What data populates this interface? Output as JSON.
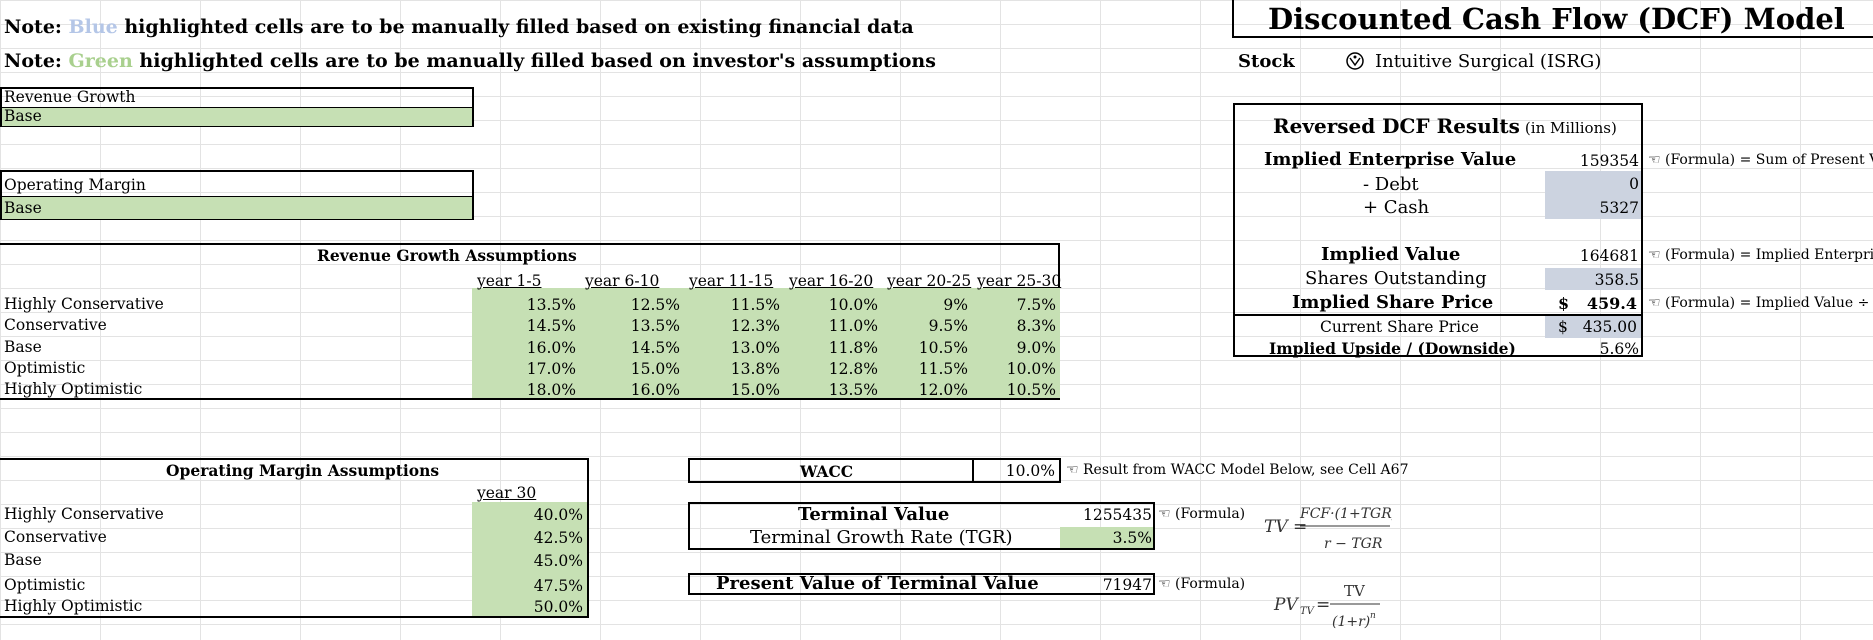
{
  "notes": {
    "note1_prefix": "Note:",
    "note1_color": "Blue",
    "note1_rest": "highlighted cells are to be manually filled based on existing financial data",
    "note2_prefix": "Note:",
    "note2_color": "Green",
    "note2_rest": "highlighted cells are to be manually filled based on investor's assumptions"
  },
  "title": "Discounted Cash Flow (DCF) Model",
  "stock": {
    "label": "Stock",
    "value": "Intuitive Surgical (ISRG)",
    "icon": "company-logo-icon"
  },
  "selectors": {
    "revenue_growth_label": "Revenue Growth",
    "revenue_growth_value": "Base",
    "operating_margin_label": "Operating Margin",
    "operating_margin_value": "Base"
  },
  "revenue_growth": {
    "title": "Revenue Growth Assumptions",
    "headers": [
      "year 1-5",
      "year 6-10",
      "year 11-15",
      "year 16-20",
      "year 20-25",
      "year 25-30"
    ],
    "rows": [
      {
        "label": "Highly Conservative",
        "values": [
          "13.5%",
          "12.5%",
          "11.5%",
          "10.0%",
          "9%",
          "7.5%"
        ]
      },
      {
        "label": "Conservative",
        "values": [
          "14.5%",
          "13.5%",
          "12.3%",
          "11.0%",
          "9.5%",
          "8.3%"
        ]
      },
      {
        "label": "Base",
        "values": [
          "16.0%",
          "14.5%",
          "13.0%",
          "11.8%",
          "10.5%",
          "9.0%"
        ]
      },
      {
        "label": "Optimistic",
        "values": [
          "17.0%",
          "15.0%",
          "13.8%",
          "12.8%",
          "11.5%",
          "10.0%"
        ]
      },
      {
        "label": "Highly Optimistic",
        "values": [
          "18.0%",
          "16.0%",
          "15.0%",
          "13.5%",
          "12.0%",
          "10.5%"
        ]
      }
    ]
  },
  "operating_margin": {
    "title": "Operating Margin Assumptions",
    "header": "year 30",
    "rows": [
      {
        "label": "Highly Conservative",
        "value": "40.0%"
      },
      {
        "label": "Conservative",
        "value": "42.5%"
      },
      {
        "label": "Base",
        "value": "45.0%"
      },
      {
        "label": "Optimistic",
        "value": "47.5%"
      },
      {
        "label": "Highly Optimistic",
        "value": "50.0%"
      }
    ]
  },
  "wacc": {
    "label": "WACC",
    "value": "10.0%",
    "note": "Result from WACC Model Below, see Cell A67"
  },
  "terminal": {
    "tv_label": "Terminal Value",
    "tv_value": "1255435",
    "tv_note": "(Formula)",
    "tgr_label": "Terminal Growth Rate (TGR)",
    "tgr_value": "3.5%",
    "pv_label": "Present Value of Terminal Value",
    "pv_value": "71947",
    "pv_note": "(Formula)"
  },
  "reversed_dcf": {
    "title": "Reversed DCF Results",
    "subtitle": "(in Millions)",
    "rows": {
      "iev_label": "Implied Enterprise Value",
      "iev_value": "159354",
      "iev_note": "(Formula) = Sum of Present Va",
      "debt_label": "- Debt",
      "debt_value": "0",
      "cash_label": "+ Cash",
      "cash_value": "5327",
      "iv_label": "Implied Value",
      "iv_value": "164681",
      "iv_note": "(Formula) = Implied Enterpris",
      "so_label": "Shares Outstanding",
      "so_value": "358.5",
      "isp_label": "Implied Share Price",
      "isp_currency": "$",
      "isp_value": "459.4",
      "isp_note": "(Formula) = Implied Value ÷ S",
      "csp_label": "Current Share Price",
      "csp_currency": "$",
      "csp_value": "435.00",
      "ud_label": "Implied Upside / (Downside)",
      "ud_value": "5.6%"
    }
  },
  "colors": {
    "green": "#c6e0b4",
    "blue": "#ccd3e0",
    "note_blue": "#b4c6e7",
    "note_green": "#a9d08e"
  }
}
